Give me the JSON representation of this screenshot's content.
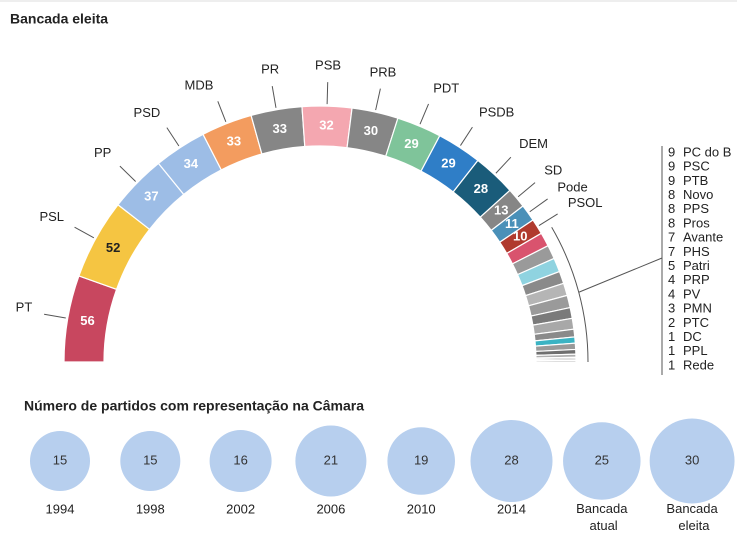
{
  "chart_data": [
    {
      "type": "parliament",
      "title": "Bancada eleita",
      "categories": [
        "PT",
        "PSL",
        "PP",
        "PSD",
        "MDB",
        "PR",
        "PSB",
        "PRB",
        "PDT",
        "PSDB",
        "DEM",
        "SD",
        "Pode",
        "PSOL",
        "PC do B",
        "PSC",
        "PTB",
        "Novo",
        "PPS",
        "Pros",
        "Avante",
        "PHS",
        "Patri",
        "PRP",
        "PV",
        "PMN",
        "PTC",
        "DC",
        "PPL",
        "Rede"
      ],
      "values": [
        56,
        52,
        37,
        34,
        33,
        33,
        32,
        30,
        29,
        29,
        28,
        13,
        11,
        10,
        9,
        9,
        9,
        8,
        8,
        8,
        7,
        7,
        5,
        4,
        4,
        3,
        2,
        1,
        1,
        1
      ],
      "colors": [
        "#c8475f",
        "#f5c542",
        "#9dbde6",
        "#9dbde6",
        "#f39c5f",
        "#868686",
        "#f4a7b0",
        "#868686",
        "#7fc49a",
        "#2f7ec7",
        "#1a5c7a",
        "#868686",
        "#4a90b8",
        "#b03a2e",
        "#d9536e",
        "#9a9a9a",
        "#8fd3e0",
        "#8a8a8a",
        "#b5b5b5",
        "#9a9a9a",
        "#7a7a7a",
        "#a8a8a8",
        "#8a8a8a",
        "#3bb3c3",
        "#9a9a9a",
        "#6f6f6f",
        "#b0b0b0",
        "#8a8a8a",
        "#a0a0a0",
        "#7a7a7a"
      ]
    },
    {
      "type": "bubble",
      "title": "Número de partidos com representação na Câmara",
      "categories": [
        "1994",
        "1998",
        "2002",
        "2006",
        "2010",
        "2014",
        "Bancada atual",
        "Bancada eleita"
      ],
      "values": [
        15,
        15,
        16,
        21,
        19,
        28,
        25,
        30
      ],
      "color": "#b7cfee"
    }
  ]
}
